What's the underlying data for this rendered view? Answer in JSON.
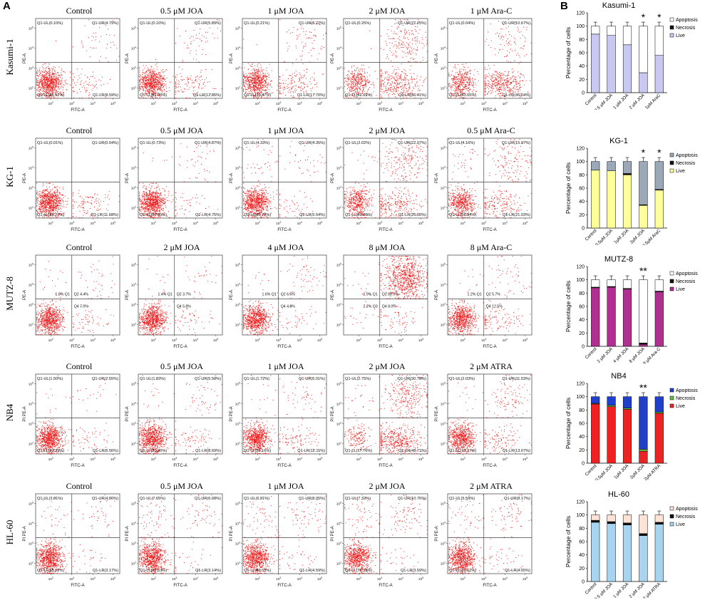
{
  "panel_labels": {
    "a": "A",
    "b": "B"
  },
  "chart_data": {
    "type": "scatter",
    "description": "Annexin V-FITC / PI flow cytometry quadrant plots (panel A) and stacked apoptosis bar charts (panel B)",
    "flow_axes": {
      "x": "FITC-A",
      "y_pe": "PE-A",
      "y_pi": "PI PE-A"
    },
    "bar_axis": {
      "ylabel": "Percentage of cells",
      "ticks": [
        "0",
        "20",
        "40",
        "60",
        "80",
        "100",
        "120"
      ],
      "ylim": [
        0,
        120
      ]
    },
    "rows": [
      {
        "cell_line": "Kasumi-1",
        "ylabel": "PE-A",
        "style": "q1",
        "tickprefix": "10",
        "plots": [
          {
            "title": "Control",
            "ul": "Q1-UL(0.10%)",
            "ur": "Q1-UR(4.79%)",
            "ll": "Q1-LL(86.52%)",
            "lr": "Q1-LR(8.59%)",
            "dist": {
              "ul": 0.1,
              "ur": 4.79,
              "ll": 86.52,
              "lr": 8.59
            }
          },
          {
            "title": "0.5 μM JOA",
            "ul": "Q1-UL(0.10%)",
            "ur": "Q1-UR(5.89%)",
            "ll": "Q1-LL(81.00%)",
            "lr": "Q1-LR(12.86%)",
            "dist": {
              "ul": 0.1,
              "ur": 5.89,
              "ll": 81.0,
              "lr": 12.86
            }
          },
          {
            "title": "1 μM JOA",
            "ul": "Q1-UL(0.21%)",
            "ur": "Q1-UR(8.22%)",
            "ll": "Q1-LL(73.87%)",
            "lr": "Q1-LR(17.70%)",
            "dist": {
              "ul": 0.21,
              "ur": 8.22,
              "ll": 73.87,
              "lr": 17.7
            }
          },
          {
            "title": "2 μM JOA",
            "ul": "Q1-UL(0.25%)",
            "ur": "Q1-UR(22.25%)",
            "ll": "Q1-LL(41.09%)",
            "lr": "Q1-LR(36.41%)",
            "dist": {
              "ul": 0.25,
              "ur": 22.25,
              "ll": 41.09,
              "lr": 36.41
            }
          },
          {
            "title": "1 μM Ara-C",
            "ul": "Q1-UL(0.04%)",
            "ur": "Q1-UR(10.67%)",
            "ll": "Q1-LL(43.65%)",
            "lr": "Q1-LR(45.64%)",
            "dist": {
              "ul": 0.04,
              "ur": 10.67,
              "ll": 43.65,
              "lr": 45.64
            }
          }
        ],
        "bar": {
          "title": "Kasumi-1",
          "categories": [
            "Control",
            "0.5 μM JOA",
            "1 μM JOA",
            "2 μM JOA",
            "1μM AraC"
          ],
          "series": [
            {
              "name": "Live",
              "color": "#c8c8f0",
              "values": [
                88,
                86,
                72,
                30,
                56
              ]
            },
            {
              "name": "Necrosis",
              "color": "#111111",
              "values": [
                0,
                0,
                0,
                0,
                0
              ]
            },
            {
              "name": "Apoptosis",
              "color": "#ffffff",
              "values": [
                12,
                14,
                28,
                70,
                44
              ]
            }
          ],
          "legend": [
            "Apoptosis",
            "Necrosis",
            "Live"
          ],
          "stars": [
            "",
            "",
            "",
            "*",
            "*"
          ]
        }
      },
      {
        "cell_line": "KG-1",
        "ylabel": "PE-A",
        "style": "q1",
        "tickprefix": "10",
        "plots": [
          {
            "title": "Control",
            "ul": "Q1-UL(0.01%)",
            "ur": "Q1-UR(0.04%)",
            "ll": "Q1-LL(88.27%)",
            "lr": "Q1-LR(11.68%)",
            "dist": {
              "ul": 0.01,
              "ur": 0.04,
              "ll": 88.27,
              "lr": 11.68
            }
          },
          {
            "title": "0.5 μM JOA",
            "ul": "Q1-UL(0.73%)",
            "ur": "Q1-UR(4.87%)",
            "ll": "Q1-LL(89.65%)",
            "lr": "Q1-LR(4.75%)",
            "dist": {
              "ul": 0.73,
              "ur": 4.87,
              "ll": 89.65,
              "lr": 4.75
            }
          },
          {
            "title": "1 μM JOA",
            "ul": "Q1-UL(4.33%)",
            "ur": "Q1-UR(4.35%)",
            "ll": "Q1-LL(85.78%)",
            "lr": "Q1-LR(5.54%)",
            "dist": {
              "ul": 4.33,
              "ur": 4.35,
              "ll": 85.78,
              "lr": 5.54
            }
          },
          {
            "title": "2 μM JOA",
            "ul": "Q1-UL(2.02%)",
            "ur": "Q1-UR(22.07%)",
            "ll": "Q1-LL(49.86%)",
            "lr": "Q1-LR(26.06%)",
            "dist": {
              "ul": 2.02,
              "ur": 22.07,
              "ll": 49.86,
              "lr": 26.06
            }
          },
          {
            "title": "0.5 μM Ara-C",
            "ul": "Q1-UL(4.16%)",
            "ur": "Q1-UR(15.97%)",
            "ll": "Q1-LL(58.84%)",
            "lr": "Q1-LR(21.03%)",
            "dist": {
              "ul": 4.16,
              "ur": 15.97,
              "ll": 58.84,
              "lr": 21.03
            }
          }
        ],
        "bar": {
          "title": "KG-1",
          "categories": [
            "Control",
            "0.5μM JOA",
            "1μM JOA",
            "2μM JOA",
            "0.5μM AraC"
          ],
          "series": [
            {
              "name": "Live",
              "color": "#ffff99",
              "values": [
                87,
                86,
                80,
                34,
                57
              ]
            },
            {
              "name": "Necrosis",
              "color": "#111111",
              "values": [
                0,
                0,
                2,
                1,
                1
              ]
            },
            {
              "name": "Apoptosis",
              "color": "#9aa8b8",
              "values": [
                13,
                14,
                18,
                65,
                42
              ]
            }
          ],
          "legend": [
            "Apoptosis",
            "Necrosis",
            "Live"
          ],
          "stars": [
            "",
            "",
            "",
            "*",
            "*"
          ]
        }
      },
      {
        "cell_line": "MUTZ-8",
        "ylabel": "PE-A",
        "style": "q",
        "tickprefix": "10",
        "plots": [
          {
            "title": "Control",
            "ul": "1.8%  Q1",
            "ur": "Q2  4.4%",
            "ll": "",
            "lr": "Q4  7.0%",
            "dist": {
              "ul": 1.8,
              "ur": 4.4,
              "ll": 86.8,
              "lr": 7.0
            }
          },
          {
            "title": "2 μM JOA",
            "ul": "1.4%  Q1",
            "ur": "Q2  3.7%",
            "ll": "",
            "lr": "Q4  5.8%",
            "dist": {
              "ul": 1.4,
              "ur": 3.7,
              "ll": 89.1,
              "lr": 5.8
            }
          },
          {
            "title": "4 μM JOA",
            "ul": "1.6%  Q1",
            "ur": "Q2  6.5%",
            "ll": "",
            "lr": "Q4  4.8%",
            "dist": {
              "ul": 1.6,
              "ur": 6.5,
              "ll": 87.1,
              "lr": 4.8
            }
          },
          {
            "title": "8 μM JOA",
            "ul": "1.9%  Q1",
            "ur": "Q2  87.9%",
            "ll": "2.2%  Q3",
            "lr": "Q4  8.0%",
            "dist": {
              "ul": 1.9,
              "ur": 87.9,
              "ll": 2.2,
              "lr": 8.0
            }
          },
          {
            "title": "8 μM Ara-C",
            "ul": "1.2%  Q1",
            "ur": "Q2  5.7%",
            "ll": "",
            "lr": "Q4  12.5%",
            "dist": {
              "ul": 1.2,
              "ur": 5.7,
              "ll": 80.6,
              "lr": 12.5
            }
          }
        ],
        "bar": {
          "title": "MUTZ-8",
          "categories": [
            "Control",
            "2 μM JOA",
            "4 μM JOA",
            "8 μM JOA",
            "8 μM Ara-C"
          ],
          "series": [
            {
              "name": "Live",
              "color": "#b03090",
              "values": [
                88,
                89,
                86,
                3,
                82
              ]
            },
            {
              "name": "Necrosis",
              "color": "#111111",
              "values": [
                1,
                1,
                1,
                2,
                1
              ]
            },
            {
              "name": "Apoptosis",
              "color": "#ffffff",
              "values": [
                11,
                10,
                13,
                95,
                17
              ]
            }
          ],
          "legend": [
            "Apoptosis",
            "Necrosis",
            "Live"
          ],
          "stars": [
            "",
            "",
            "",
            "**",
            ""
          ]
        }
      },
      {
        "cell_line": "NB4",
        "ylabel": "PI PE-A",
        "style": "q1",
        "tickprefix": "10",
        "plots": [
          {
            "title": "Control",
            "ul": "Q1-UL(1.50%)",
            "ur": "Q1-UR(2.55%)",
            "ll": "Q1-LL(89.39%)",
            "lr": "Q1-LR(6.56%)",
            "dist": {
              "ul": 1.5,
              "ur": 2.55,
              "ll": 89.39,
              "lr": 6.56
            }
          },
          {
            "title": "0.5 μM JOA",
            "ul": "Q1-UL(1.83%)",
            "ur": "Q1-UR(5.58%)",
            "ll": "Q1-LL(83.90%)",
            "lr": "Q1-LR(8.69%)",
            "dist": {
              "ul": 1.83,
              "ur": 5.58,
              "ll": 83.9,
              "lr": 8.69
            }
          },
          {
            "title": "1 μM JOA",
            "ul": "Q1-UL(1.72%)",
            "ur": "Q1-UR(6.01%)",
            "ll": "Q1-LL(80.16%)",
            "lr": "Q1-LR(12.11%)",
            "dist": {
              "ul": 1.72,
              "ur": 6.01,
              "ll": 80.16,
              "lr": 12.11
            }
          },
          {
            "title": "2 μM JOA",
            "ul": "Q1-UL(2.75%)",
            "ur": "Q1-UR(30.78%)",
            "ll": "Q1-LL(17.76%)",
            "lr": "Q1-LR(48.71%)",
            "dist": {
              "ul": 2.75,
              "ur": 30.78,
              "ll": 17.76,
              "lr": 48.71
            }
          },
          {
            "title": "2 μM ATRA",
            "ul": "Q1-UL(2.03%)",
            "ur": "Q1-UR(11.53%)",
            "ll": "Q1-LL(73.37%)",
            "lr": "Q1-LR(13.07%)",
            "dist": {
              "ul": 2.03,
              "ur": 11.53,
              "ll": 73.37,
              "lr": 13.07
            }
          }
        ],
        "bar": {
          "title": "NB4",
          "categories": [
            "Control",
            "0.5μM JOA",
            "1μM JOA",
            "2μM JOA",
            "2μM ATRA"
          ],
          "series": [
            {
              "name": "Live",
              "color": "#ee2222",
              "values": [
                89,
                85,
                81,
                18,
                75
              ]
            },
            {
              "name": "Necrosis",
              "color": "#66bb44",
              "values": [
                1,
                2,
                2,
                3,
                2
              ]
            },
            {
              "name": "Apoptosis",
              "color": "#1f3fcc",
              "values": [
                10,
                13,
                17,
                79,
                23
              ]
            }
          ],
          "legend": [
            "Apoptosis",
            "Necrosis",
            "Live"
          ],
          "stars": [
            "",
            "",
            "",
            "**",
            ""
          ]
        }
      },
      {
        "cell_line": "HL-60",
        "ylabel": "PI PE-A",
        "style": "q1",
        "tickprefix": "10",
        "plots": [
          {
            "title": "Control",
            "ul": "Q1-UL(3.81%)",
            "ur": "Q1-UR(4.80%)",
            "ll": "Q1-LL(88.22%)",
            "lr": "Q1-LR(3.17%)",
            "dist": {
              "ul": 3.81,
              "ur": 4.8,
              "ll": 88.22,
              "lr": 3.17
            }
          },
          {
            "title": "0.5 μM JOA",
            "ul": "Q1-UL(7.65%)",
            "ur": "Q1-UR(6.68%)",
            "ll": "Q1-LL(82.53%)",
            "lr": "Q1-LR(3.14%)",
            "dist": {
              "ul": 7.65,
              "ur": 6.68,
              "ll": 82.53,
              "lr": 3.14
            }
          },
          {
            "title": "1 μM JOA",
            "ul": "Q1-UL(6.81%)",
            "ur": "Q1-UR(8.05%)",
            "ll": "Q1-LL(80.55%)",
            "lr": "Q1-LR(4.59%)",
            "dist": {
              "ul": 6.81,
              "ur": 8.05,
              "ll": 80.55,
              "lr": 4.59
            }
          },
          {
            "title": "2 μM JOA",
            "ul": "Q1-UL(7.32%)",
            "ur": "Q1-UR(10.76%)",
            "ll": "Q1-LL(78.33%)",
            "lr": "Q1-LR(3.59%)",
            "dist": {
              "ul": 7.32,
              "ur": 10.76,
              "ll": 78.33,
              "lr": 3.59
            }
          },
          {
            "title": "2 μM ATRA",
            "ul": "Q1-UL(5.59%)",
            "ur": "Q1-UR(8.17%)",
            "ll": "Q1-LL(81.62%)",
            "lr": "Q1-LR(4.65%)",
            "dist": {
              "ul": 5.59,
              "ur": 8.17,
              "ll": 81.62,
              "lr": 4.65
            }
          }
        ],
        "bar": {
          "title": "HL-60",
          "categories": [
            "Control",
            "0.5 μM JOA",
            "1 μM JOA",
            "2 μM JOA",
            "2 μM ATRA"
          ],
          "series": [
            {
              "name": "Live",
              "color": "#a8d4f0",
              "values": [
                89,
                87,
                85,
                69,
                86
              ]
            },
            {
              "name": "Necrosis",
              "color": "#111111",
              "values": [
                3,
                3,
                3,
                3,
                3
              ]
            },
            {
              "name": "Apoptosis",
              "color": "#fde2d6",
              "values": [
                8,
                10,
                12,
                28,
                11
              ]
            }
          ],
          "legend": [
            "Apoptosis",
            "Necrosis",
            "Live"
          ],
          "stars": [
            "",
            "",
            "",
            "",
            ""
          ]
        }
      }
    ]
  }
}
